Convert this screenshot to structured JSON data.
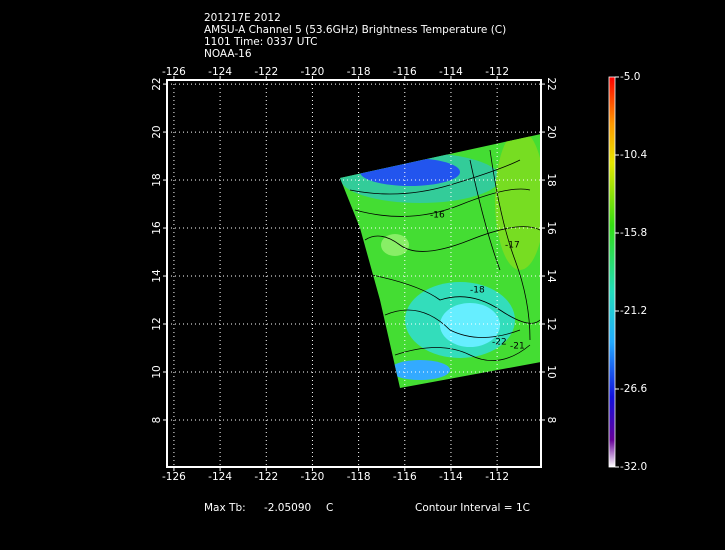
{
  "header": {
    "lines": [
      "201217E 2012",
      "AMSU-A Channel 5 (53.6GHz) Brightness Temperature (C)",
      "1101 Time: 0337 UTC",
      "NOAA-16"
    ]
  },
  "map": {
    "xlim": [
      -126.3,
      -110.1
    ],
    "ylim": [
      6.04,
      22.17
    ],
    "xticks": [
      -126,
      -124,
      -122,
      -120,
      -118,
      -116,
      -114,
      -112
    ],
    "yticks": [
      8,
      10,
      12,
      14,
      16,
      18,
      20,
      22
    ],
    "grid": true,
    "contour_labels": [
      "-16",
      "-17",
      "-18",
      "-22",
      "-21"
    ]
  },
  "colorbar": {
    "lim": [
      -32,
      -5
    ],
    "ticks": [
      {
        "value": -5,
        "label": "-5.0"
      },
      -10.4,
      -15.8,
      -21.2,
      -26.6,
      {
        "value": -32,
        "label": "-32.0"
      }
    ]
  },
  "footer": {
    "max_tb_label": "Max Tb:",
    "max_tb_value": "-2.05090",
    "max_tb_unit": "C",
    "contour_interval": "Contour Interval = 1C"
  }
}
